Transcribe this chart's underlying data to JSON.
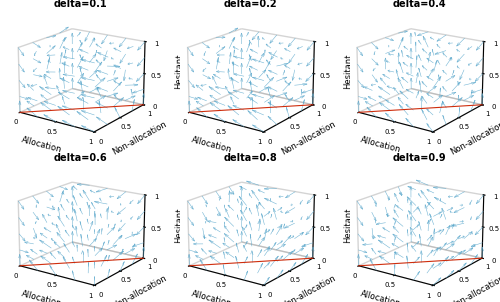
{
  "deltas": [
    0.1,
    0.2,
    0.4,
    0.6,
    0.8,
    0.9
  ],
  "grid_n": 5,
  "arrow_color": "#5ba8cc",
  "red_line_color": "#cc2200",
  "title_fontsize": 7,
  "axis_label_fontsize": 6,
  "tick_fontsize": 5,
  "xlabel": "Allocation",
  "ylabel": "Non-allocation",
  "zlabel": "Hesitant",
  "elev": 18,
  "azim": -55,
  "xticks": [
    0,
    0.5,
    1
  ],
  "yticks": [
    0,
    0.5,
    1
  ],
  "zticks": [
    0,
    0.5,
    1
  ]
}
